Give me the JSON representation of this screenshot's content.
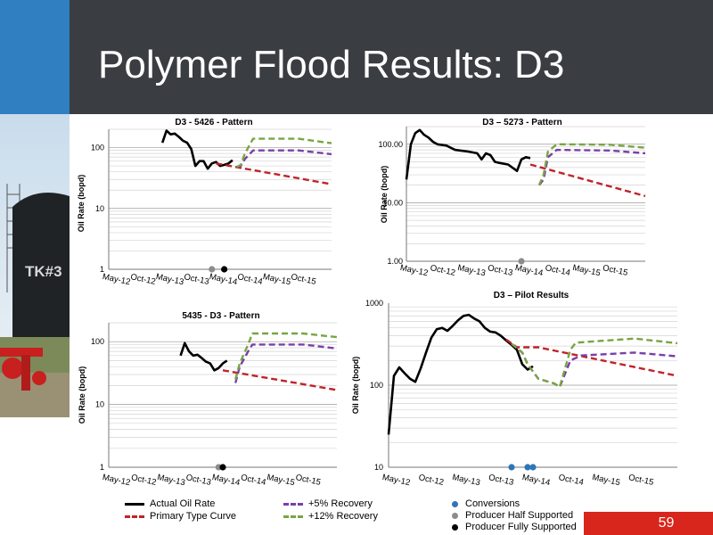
{
  "slide": {
    "title": "Polymer Flood Results: D3",
    "page_number": "59",
    "photo_sign": "TK#3"
  },
  "colors": {
    "actual": "#000000",
    "primary": "#c0232a",
    "plus5": "#7a3fa8",
    "plus12": "#78a542",
    "conversion": "#2e75b6",
    "half": "#8c8c8c",
    "fully": "#000000"
  },
  "legend": [
    {
      "key": "actual",
      "label": "Actual Oil Rate",
      "style": "solid"
    },
    {
      "key": "primary",
      "label": "Primary Type Curve",
      "style": "dash"
    },
    {
      "key": "plus5",
      "label": "+5% Recovery",
      "style": "dash"
    },
    {
      "key": "plus12",
      "label": "+12% Recovery",
      "style": "dash"
    },
    {
      "key": "conversion",
      "label": "Conversions",
      "style": "dot"
    },
    {
      "key": "half",
      "label": "Producer Half Supported",
      "style": "dot"
    },
    {
      "key": "fully",
      "label": "Producer Fully Supported",
      "style": "dot"
    }
  ],
  "chart_data": [
    {
      "type": "line",
      "title": "D3 - 5426 - Pattern",
      "ylabel": "Oil Rate (bopd)",
      "yscale": "log",
      "ylim": [
        1,
        200
      ],
      "yticks": [
        1,
        10,
        100
      ],
      "ytick_labels": [
        "1",
        "10",
        "100"
      ],
      "xlim": [
        "2011-11",
        "2016-05"
      ],
      "xtick_labels": [
        "May-12",
        "Oct-12",
        "May-13",
        "Oct-13",
        "May-14",
        "Oct-14",
        "May-15",
        "Oct-15"
      ],
      "series": [
        {
          "key": "actual",
          "points": [
            [
              "2012-12",
              120
            ],
            [
              "2013-01",
              190
            ],
            [
              "2013-02",
              165
            ],
            [
              "2013-03",
              170
            ],
            [
              "2013-04",
              150
            ],
            [
              "2013-05",
              130
            ],
            [
              "2013-06",
              120
            ],
            [
              "2013-07",
              95
            ],
            [
              "2013-08",
              50
            ],
            [
              "2013-09",
              60
            ],
            [
              "2013-10",
              60
            ],
            [
              "2013-11",
              45
            ],
            [
              "2013-12",
              55
            ],
            [
              "2014-01",
              58
            ],
            [
              "2014-02",
              50
            ],
            [
              "2014-03",
              52
            ],
            [
              "2014-04",
              55
            ],
            [
              "2014-05",
              62
            ]
          ]
        },
        {
          "key": "primary",
          "points": [
            [
              "2014-01",
              55
            ],
            [
              "2016-05",
              25
            ]
          ]
        },
        {
          "key": "plus5",
          "points": [
            [
              "2014-06",
              48
            ],
            [
              "2014-07",
              50
            ],
            [
              "2014-08",
              65
            ],
            [
              "2014-10",
              90
            ],
            [
              "2015-09",
              90
            ],
            [
              "2016-05",
              78
            ]
          ]
        },
        {
          "key": "plus12",
          "points": [
            [
              "2014-06",
              48
            ],
            [
              "2014-07",
              52
            ],
            [
              "2014-08",
              80
            ],
            [
              "2014-10",
              140
            ],
            [
              "2015-09",
              140
            ],
            [
              "2016-05",
              118
            ]
          ]
        }
      ],
      "markers": [
        {
          "key": "half",
          "x": "2013-12",
          "y": 1
        },
        {
          "key": "fully",
          "x": "2014-03",
          "y": 1
        }
      ]
    },
    {
      "type": "line",
      "title": "D3 – 5273 - Pattern",
      "ylabel": "Oil Rate (bopd)",
      "yscale": "log",
      "ylim": [
        1,
        200
      ],
      "yticks": [
        1,
        10,
        100
      ],
      "ytick_labels": [
        "1.00",
        "10.00",
        "100.00"
      ],
      "xlim": [
        "2011-11",
        "2016-05"
      ],
      "xtick_labels": [
        "May-12",
        "Oct-12",
        "May-13",
        "Oct-13",
        "May-14",
        "Oct-14",
        "May-15",
        "Oct-15"
      ],
      "series": [
        {
          "key": "actual",
          "points": [
            [
              "2011-11",
              25
            ],
            [
              "2011-12",
              100
            ],
            [
              "2012-01",
              155
            ],
            [
              "2012-02",
              175
            ],
            [
              "2012-03",
              145
            ],
            [
              "2012-04",
              130
            ],
            [
              "2012-05",
              110
            ],
            [
              "2012-06",
              100
            ],
            [
              "2012-08",
              95
            ],
            [
              "2012-10",
              80
            ],
            [
              "2013-01",
              75
            ],
            [
              "2013-03",
              70
            ],
            [
              "2013-04",
              55
            ],
            [
              "2013-05",
              70
            ],
            [
              "2013-06",
              65
            ],
            [
              "2013-07",
              50
            ],
            [
              "2013-08",
              48
            ],
            [
              "2013-10",
              45
            ],
            [
              "2013-12",
              35
            ],
            [
              "2014-01",
              55
            ],
            [
              "2014-02",
              60
            ],
            [
              "2014-03",
              58
            ]
          ]
        },
        {
          "key": "primary",
          "points": [
            [
              "2014-03",
              45
            ],
            [
              "2016-05",
              13
            ]
          ]
        },
        {
          "key": "plus5",
          "points": [
            [
              "2014-05",
              20
            ],
            [
              "2014-06",
              25
            ],
            [
              "2014-07",
              60
            ],
            [
              "2014-09",
              80
            ],
            [
              "2015-09",
              78
            ],
            [
              "2016-05",
              70
            ]
          ]
        },
        {
          "key": "plus12",
          "points": [
            [
              "2014-05",
              20
            ],
            [
              "2014-06",
              30
            ],
            [
              "2014-07",
              75
            ],
            [
              "2014-09",
              100
            ],
            [
              "2015-09",
              98
            ],
            [
              "2016-05",
              87
            ]
          ]
        }
      ],
      "markers": [
        {
          "key": "half",
          "x": "2014-01",
          "y": 1
        }
      ]
    },
    {
      "type": "line",
      "title": "5435 - D3 - Pattern",
      "ylabel": "Oil Rate (bopd)",
      "yscale": "log",
      "ylim": [
        1,
        200
      ],
      "yticks": [
        1,
        10,
        100
      ],
      "ytick_labels": [
        "1",
        "10",
        "100"
      ],
      "xlim": [
        "2011-11",
        "2016-05"
      ],
      "xtick_labels": [
        "May-12",
        "Oct-12",
        "May-13",
        "Oct-13",
        "May-14",
        "Oct-14",
        "May-15",
        "Oct-15"
      ],
      "series": [
        {
          "key": "actual",
          "points": [
            [
              "2013-04",
              60
            ],
            [
              "2013-05",
              95
            ],
            [
              "2013-06",
              70
            ],
            [
              "2013-07",
              60
            ],
            [
              "2013-08",
              62
            ],
            [
              "2013-09",
              55
            ],
            [
              "2013-10",
              48
            ],
            [
              "2013-11",
              45
            ],
            [
              "2013-12",
              35
            ],
            [
              "2014-01",
              38
            ],
            [
              "2014-02",
              45
            ],
            [
              "2014-03",
              50
            ]
          ]
        },
        {
          "key": "primary",
          "points": [
            [
              "2014-02",
              35
            ],
            [
              "2016-05",
              17
            ]
          ]
        },
        {
          "key": "plus5",
          "points": [
            [
              "2014-05",
              22
            ],
            [
              "2014-06",
              40
            ],
            [
              "2014-08",
              70
            ],
            [
              "2014-09",
              90
            ],
            [
              "2015-09",
              90
            ],
            [
              "2016-05",
              78
            ]
          ]
        },
        {
          "key": "plus12",
          "points": [
            [
              "2014-05",
              25
            ],
            [
              "2014-06",
              45
            ],
            [
              "2014-08",
              90
            ],
            [
              "2014-09",
              135
            ],
            [
              "2015-09",
              135
            ],
            [
              "2016-05",
              118
            ]
          ]
        }
      ],
      "markers": [
        {
          "key": "half",
          "x": "2014-01",
          "y": 1
        },
        {
          "key": "fully",
          "x": "2014-02",
          "y": 1
        }
      ]
    },
    {
      "type": "line",
      "title": "D3 – Pilot Results",
      "ylabel": "Oil Rate (bopd)",
      "yscale": "log",
      "ylim": [
        10,
        1000
      ],
      "yticks": [
        10,
        100,
        1000
      ],
      "ytick_labels": [
        "10",
        "100",
        "1000"
      ],
      "xlim": [
        "2011-11",
        "2016-05"
      ],
      "xtick_labels": [
        "May-12",
        "Oct-12",
        "May-13",
        "Oct-13",
        "May-14",
        "Oct-14",
        "May-15",
        "Oct-15"
      ],
      "series": [
        {
          "key": "actual",
          "points": [
            [
              "2011-11",
              25
            ],
            [
              "2011-12",
              130
            ],
            [
              "2012-01",
              165
            ],
            [
              "2012-02",
              140
            ],
            [
              "2012-03",
              120
            ],
            [
              "2012-04",
              110
            ],
            [
              "2012-05",
              160
            ],
            [
              "2012-06",
              250
            ],
            [
              "2012-07",
              380
            ],
            [
              "2012-08",
              480
            ],
            [
              "2012-09",
              500
            ],
            [
              "2012-10",
              460
            ],
            [
              "2012-11",
              530
            ],
            [
              "2012-12",
              620
            ],
            [
              "2013-01",
              700
            ],
            [
              "2013-02",
              720
            ],
            [
              "2013-03",
              650
            ],
            [
              "2013-04",
              600
            ],
            [
              "2013-05",
              500
            ],
            [
              "2013-06",
              450
            ],
            [
              "2013-07",
              440
            ],
            [
              "2013-08",
              400
            ],
            [
              "2013-09",
              350
            ],
            [
              "2013-10",
              310
            ],
            [
              "2013-11",
              270
            ],
            [
              "2013-12",
              180
            ],
            [
              "2014-01",
              155
            ],
            [
              "2014-02",
              170
            ]
          ]
        },
        {
          "key": "primary",
          "points": [
            [
              "2013-09",
              360
            ],
            [
              "2013-11",
              290
            ],
            [
              "2014-01",
              290
            ],
            [
              "2014-03",
              290
            ],
            [
              "2016-05",
              130
            ]
          ]
        },
        {
          "key": "plus5",
          "points": [
            [
              "2013-10",
              320
            ],
            [
              "2013-12",
              250
            ],
            [
              "2014-01",
              180
            ],
            [
              "2014-03",
              120
            ],
            [
              "2014-06",
              105
            ],
            [
              "2014-07",
              95
            ],
            [
              "2014-09",
              200
            ],
            [
              "2014-11",
              230
            ],
            [
              "2015-09",
              250
            ],
            [
              "2016-05",
              225
            ]
          ]
        },
        {
          "key": "plus12",
          "points": [
            [
              "2013-10",
              320
            ],
            [
              "2013-12",
              250
            ],
            [
              "2014-01",
              180
            ],
            [
              "2014-03",
              120
            ],
            [
              "2014-06",
              105
            ],
            [
              "2014-07",
              95
            ],
            [
              "2014-09",
              270
            ],
            [
              "2014-10",
              330
            ],
            [
              "2015-09",
              370
            ],
            [
              "2016-05",
              325
            ]
          ]
        }
      ],
      "markers": [
        {
          "key": "conversion",
          "x": "2013-10",
          "y": 10
        },
        {
          "key": "conversion",
          "x": "2014-01",
          "y": 10
        },
        {
          "key": "conversion",
          "x": "2014-02",
          "y": 10
        }
      ]
    }
  ]
}
